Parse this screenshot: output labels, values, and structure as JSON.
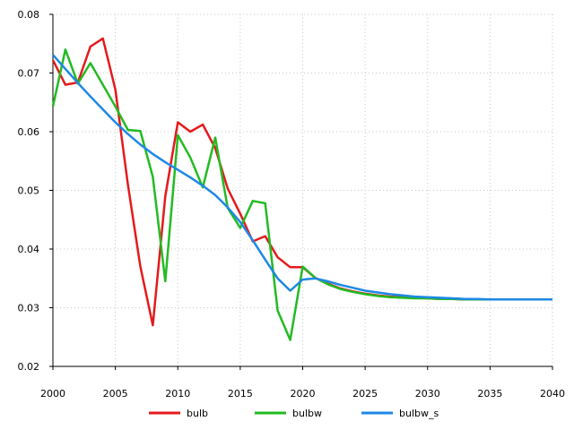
{
  "chart_data": {
    "type": "line",
    "title": "",
    "xlabel": "",
    "ylabel": "",
    "xlim": [
      2000,
      2040
    ],
    "ylim": [
      0.02,
      0.08
    ],
    "x_ticks": [
      "2000",
      "2005",
      "2010",
      "2015",
      "2020",
      "2025",
      "2030",
      "2035",
      "2040"
    ],
    "y_ticks": [
      "0.02",
      "0.03",
      "0.04",
      "0.05",
      "0.06",
      "0.07",
      "0.08"
    ],
    "grid": true,
    "legend_position": "bottom",
    "series": [
      {
        "name": "bulb",
        "color": "#e41a1c",
        "x": [
          2000,
          2001,
          2002,
          2003,
          2004,
          2005,
          2006,
          2007,
          2008,
          2009,
          2010,
          2011,
          2012,
          2013,
          2014,
          2015,
          2016,
          2017,
          2018,
          2019,
          2020,
          2021,
          2022,
          2023,
          2024,
          2025,
          2026,
          2027,
          2028,
          2029,
          2030,
          2031,
          2032,
          2033,
          2034,
          2035,
          2036,
          2037,
          2038,
          2039,
          2040
        ],
        "y": [
          0.0722,
          0.068,
          0.0684,
          0.0745,
          0.0759,
          0.0672,
          0.051,
          0.037,
          0.027,
          0.049,
          0.0616,
          0.06,
          0.0612,
          0.0572,
          0.0503,
          0.046,
          0.0413,
          0.0422,
          0.0386,
          0.0369,
          0.0369,
          0.0351,
          0.0341,
          0.0333,
          0.0328,
          0.0324,
          0.0321,
          0.0319,
          0.0318,
          0.0317,
          0.0316,
          0.0315,
          0.0315,
          0.0314,
          0.0314,
          0.0314,
          0.0314,
          0.0314,
          0.0314,
          0.0314,
          0.0314
        ]
      },
      {
        "name": "bulbw",
        "color": "#22bb22",
        "x": [
          2000,
          2001,
          2002,
          2003,
          2004,
          2005,
          2006,
          2007,
          2008,
          2009,
          2010,
          2011,
          2012,
          2013,
          2014,
          2015,
          2016,
          2017,
          2018,
          2019,
          2020,
          2021,
          2022,
          2023,
          2024,
          2025,
          2026,
          2027,
          2028,
          2029,
          2030,
          2031,
          2032,
          2033,
          2034,
          2035,
          2036,
          2037,
          2038,
          2039,
          2040
        ],
        "y": [
          0.0643,
          0.074,
          0.0682,
          0.0717,
          0.068,
          0.0643,
          0.0603,
          0.0601,
          0.0523,
          0.0345,
          0.0594,
          0.0556,
          0.0505,
          0.059,
          0.047,
          0.0436,
          0.0482,
          0.0478,
          0.0295,
          0.0245,
          0.037,
          0.0351,
          0.034,
          0.0332,
          0.0327,
          0.0323,
          0.032,
          0.0318,
          0.0317,
          0.0316,
          0.0316,
          0.0315,
          0.0315,
          0.0314,
          0.0314,
          0.0314,
          0.0314,
          0.0314,
          0.0314,
          0.0314,
          0.0314
        ]
      },
      {
        "name": "bulbw_s",
        "color": "#1e88e5",
        "x": [
          2000,
          2001,
          2002,
          2003,
          2004,
          2005,
          2006,
          2007,
          2008,
          2009,
          2010,
          2011,
          2012,
          2013,
          2014,
          2015,
          2016,
          2017,
          2018,
          2019,
          2020,
          2021,
          2022,
          2023,
          2024,
          2025,
          2026,
          2027,
          2028,
          2029,
          2030,
          2031,
          2032,
          2033,
          2034,
          2035,
          2036,
          2037,
          2038,
          2039,
          2040
        ],
        "y": [
          0.0731,
          0.0707,
          0.0683,
          0.066,
          0.0638,
          0.0616,
          0.0596,
          0.0578,
          0.0562,
          0.0548,
          0.0535,
          0.0522,
          0.0508,
          0.0492,
          0.0471,
          0.0446,
          0.0415,
          0.0382,
          0.035,
          0.0329,
          0.0348,
          0.035,
          0.0345,
          0.0339,
          0.0334,
          0.0329,
          0.0326,
          0.0323,
          0.0321,
          0.0319,
          0.0318,
          0.0317,
          0.0316,
          0.0315,
          0.0315,
          0.0314,
          0.0314,
          0.0314,
          0.0314,
          0.0314,
          0.0314
        ]
      }
    ]
  }
}
